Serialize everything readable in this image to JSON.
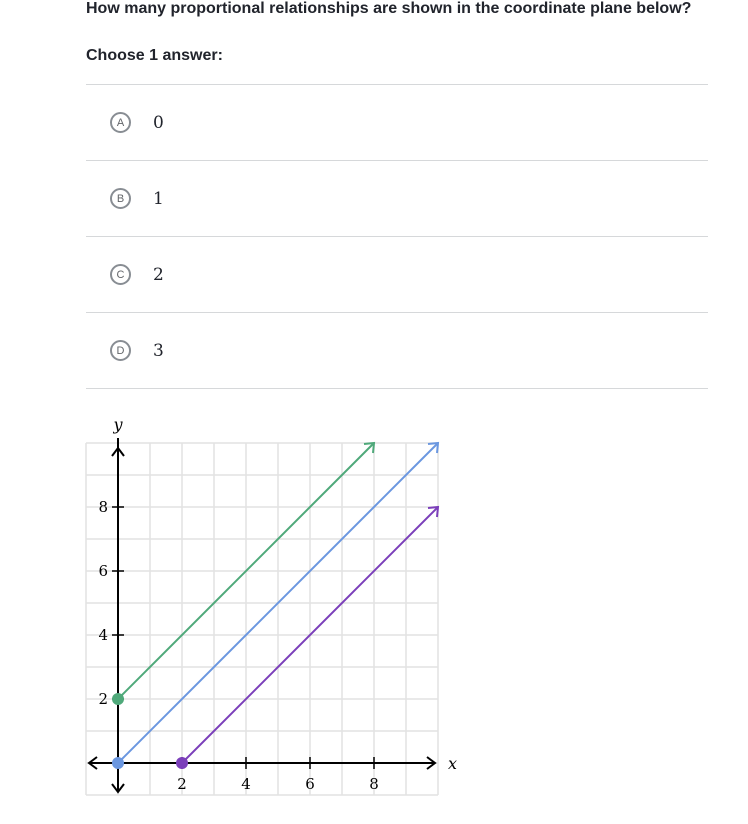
{
  "question": "How many proportional relationships are shown in the coordinate plane below?",
  "instruction": "Choose 1 answer:",
  "choices": [
    {
      "letter": "A",
      "value": "0"
    },
    {
      "letter": "B",
      "value": "1"
    },
    {
      "letter": "C",
      "value": "2"
    },
    {
      "letter": "D",
      "value": "3"
    }
  ],
  "chart_data": {
    "type": "line",
    "xlabel": "x",
    "ylabel": "y",
    "xlim": [
      -1,
      10
    ],
    "ylim": [
      -1,
      10
    ],
    "grid": true,
    "xticks": [
      2,
      4,
      6,
      8
    ],
    "yticks": [
      2,
      4,
      6,
      8
    ],
    "series": [
      {
        "color": "#4fa97a",
        "points": [
          [
            0,
            2
          ],
          [
            8,
            10
          ]
        ]
      },
      {
        "color": "#6b97e0",
        "points": [
          [
            0,
            0
          ],
          [
            10,
            10
          ]
        ]
      },
      {
        "color": "#7b3fba",
        "points": [
          [
            2,
            0
          ],
          [
            10,
            8
          ]
        ]
      }
    ]
  }
}
